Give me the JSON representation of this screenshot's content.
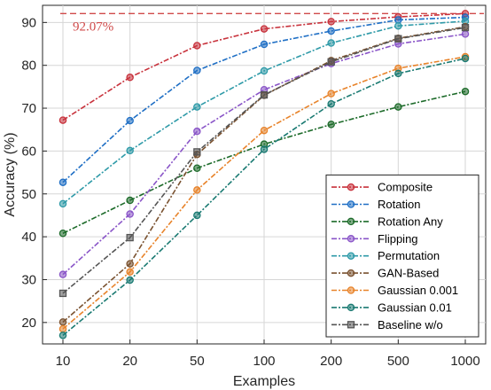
{
  "chart_data": {
    "type": "line",
    "xlabel": "Examples",
    "ylabel": "Accuracy (%)",
    "categories": [
      "10",
      "20",
      "50",
      "100",
      "200",
      "500",
      "1000"
    ],
    "ylim": [
      15,
      94
    ],
    "yticks": [
      20,
      30,
      40,
      50,
      60,
      70,
      80,
      90
    ],
    "grid": true,
    "legend_position": "bottom-right",
    "reference_line": {
      "value": 92.07,
      "label": "92.07%",
      "color": "#d04a4a"
    },
    "series": [
      {
        "name": "Composite",
        "color": "#c8323c",
        "marker": "circle",
        "values": [
          67.2,
          77.2,
          84.6,
          88.5,
          90.2,
          91.3,
          92.07
        ]
      },
      {
        "name": "Rotation",
        "color": "#1f6fc5",
        "marker": "circle",
        "values": [
          52.7,
          67.1,
          78.8,
          84.9,
          88.0,
          90.6,
          91.2
        ]
      },
      {
        "name": "Rotation Any",
        "color": "#1d6b2a",
        "marker": "circle",
        "values": [
          40.8,
          48.5,
          56.0,
          61.6,
          66.2,
          70.3,
          73.9
        ]
      },
      {
        "name": "Flipping",
        "color": "#8a55c8",
        "marker": "circle",
        "values": [
          31.2,
          45.3,
          64.6,
          74.3,
          80.4,
          85.0,
          87.3
        ]
      },
      {
        "name": "Permutation",
        "color": "#2e9aa8",
        "marker": "circle",
        "values": [
          47.7,
          60.1,
          70.3,
          78.7,
          85.2,
          89.2,
          90.3
        ]
      },
      {
        "name": "GAN-Based",
        "color": "#7a5230",
        "marker": "circle",
        "values": [
          20.1,
          33.7,
          59.2,
          73.0,
          81.1,
          86.3,
          89.0
        ]
      },
      {
        "name": "Gaussian 0.001",
        "color": "#e8832a",
        "marker": "circle",
        "values": [
          18.5,
          31.8,
          50.9,
          64.8,
          73.4,
          79.3,
          82.0
        ]
      },
      {
        "name": "Gaussian 0.01",
        "color": "#1a7a72",
        "marker": "circle",
        "values": [
          17.0,
          29.9,
          45.0,
          60.4,
          71.0,
          78.1,
          81.6
        ]
      },
      {
        "name": "Baseline w/o",
        "color": "#555555",
        "marker": "square",
        "values": [
          26.8,
          39.8,
          59.8,
          73.1,
          80.8,
          86.2,
          88.8
        ]
      }
    ]
  }
}
